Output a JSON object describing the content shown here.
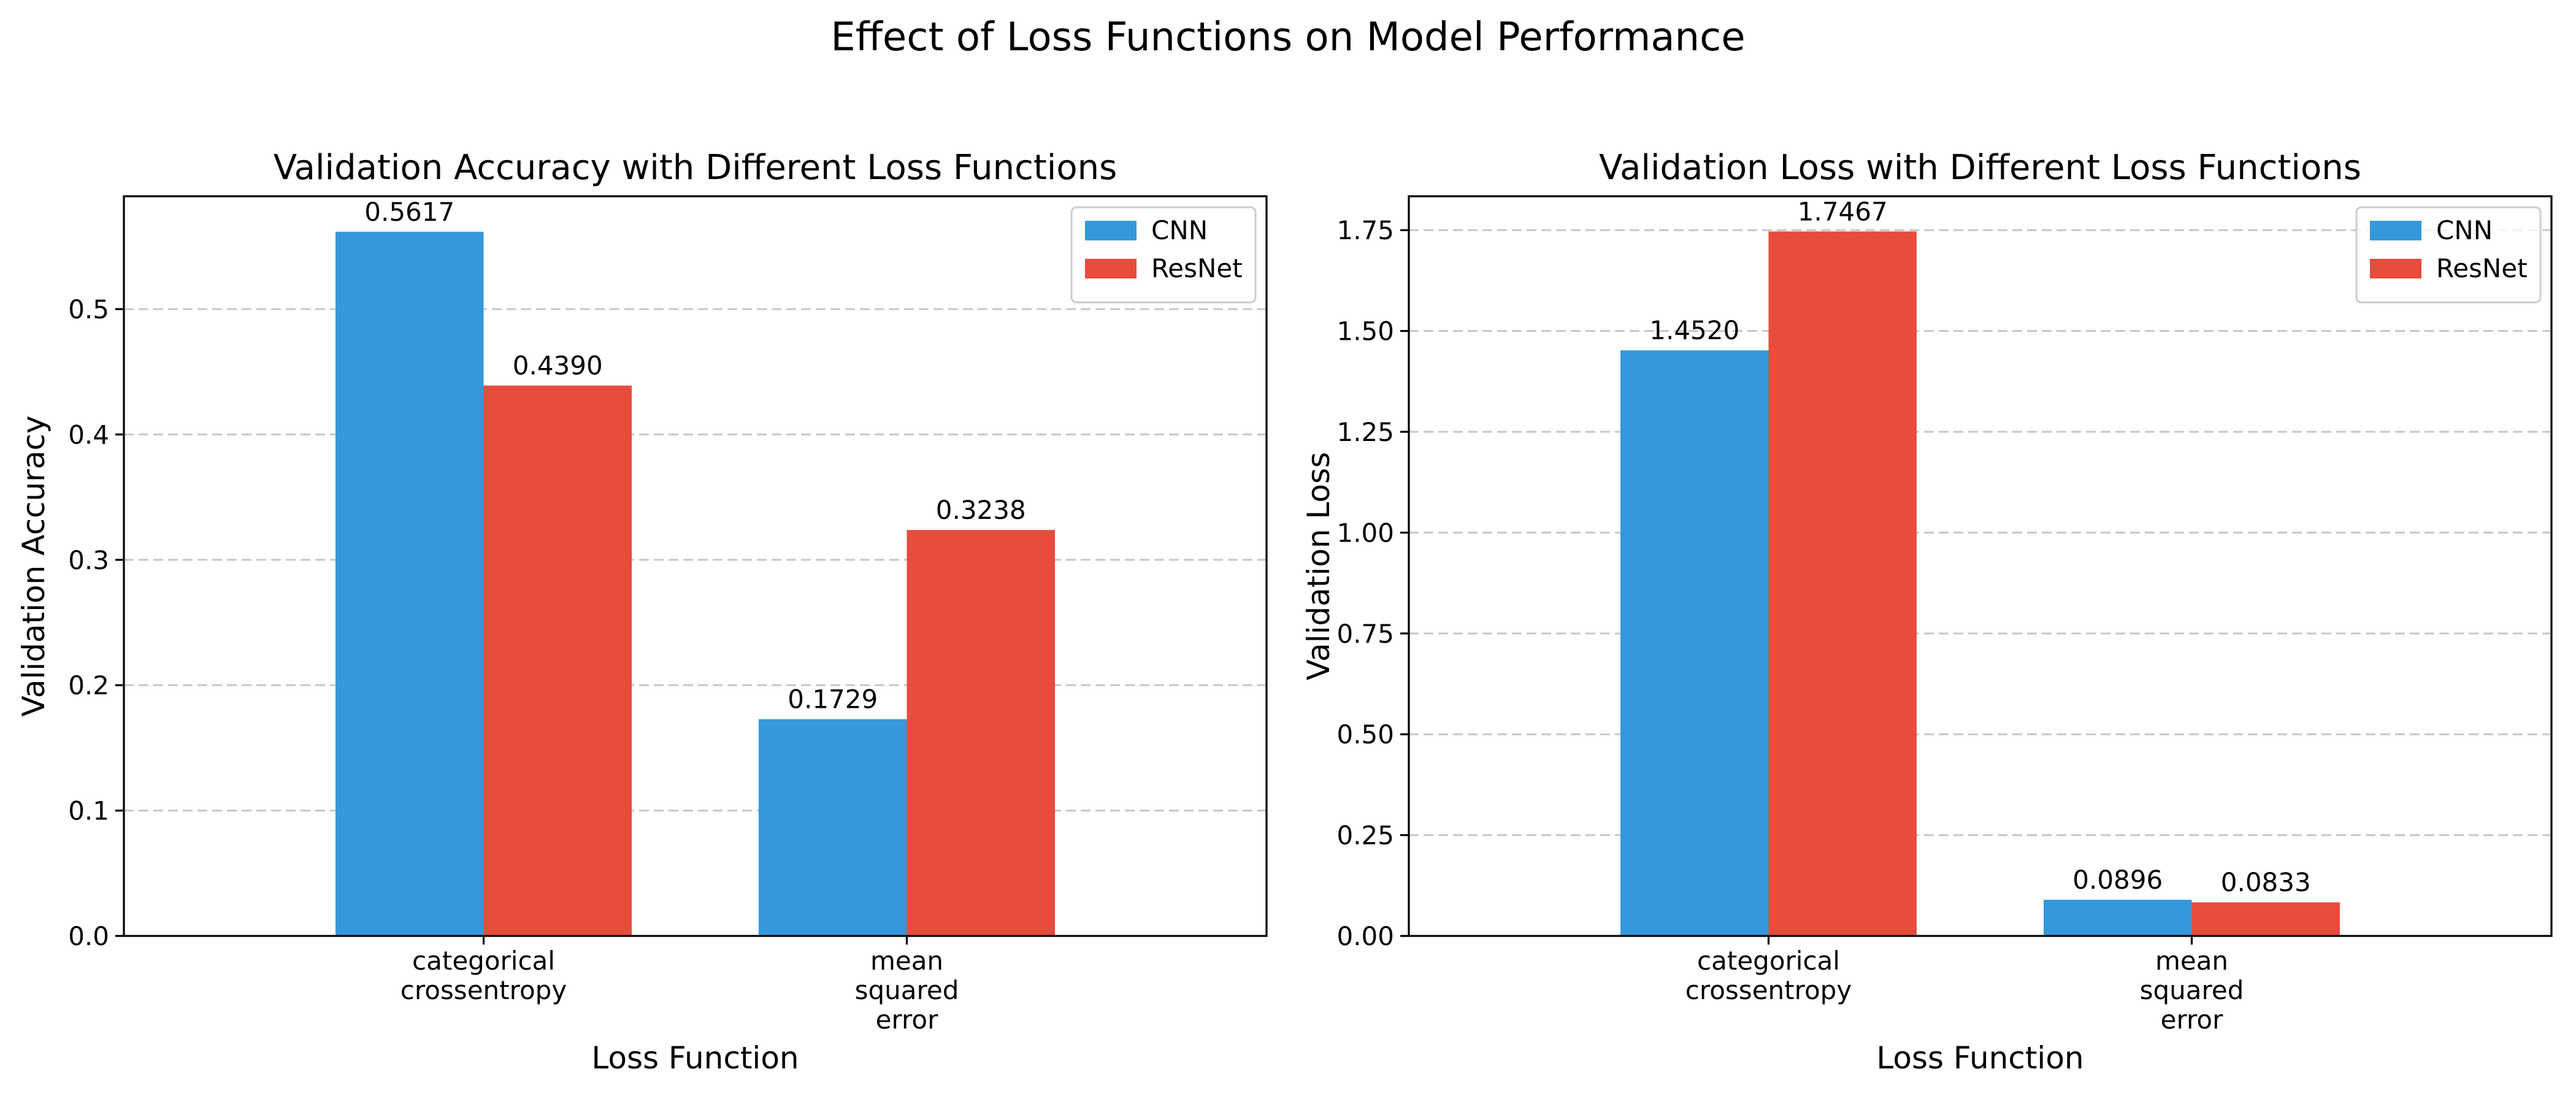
{
  "figure": {
    "suptitle": "Effect of Loss Functions on Model Performance"
  },
  "colors": {
    "CNN": "#3498db",
    "ResNet": "#e74c3c"
  },
  "chart_data": [
    {
      "type": "bar",
      "title": "Validation Accuracy with Different Loss Functions",
      "xlabel": "Loss Function",
      "ylabel": "Validation Accuracy",
      "categories": [
        [
          "categorical",
          "crossentropy"
        ],
        [
          "mean",
          "squared",
          "error"
        ]
      ],
      "series": [
        {
          "name": "CNN",
          "values": [
            0.5617,
            0.1729
          ]
        },
        {
          "name": "ResNet",
          "values": [
            0.439,
            0.3238
          ]
        }
      ],
      "value_labels": [
        [
          "0.5617",
          "0.1729"
        ],
        [
          "0.4390",
          "0.3238"
        ]
      ],
      "ylim": [
        0,
        0.59
      ],
      "yticks": [
        0.0,
        0.1,
        0.2,
        0.3,
        0.4,
        0.5
      ],
      "ytick_labels": [
        "0.0",
        "0.1",
        "0.2",
        "0.3",
        "0.4",
        "0.5"
      ],
      "grid": "y-dashed",
      "legend": "upper-right"
    },
    {
      "type": "bar",
      "title": "Validation Loss with Different Loss Functions",
      "xlabel": "Loss Function",
      "ylabel": "Validation Loss",
      "categories": [
        [
          "categorical",
          "crossentropy"
        ],
        [
          "mean",
          "squared",
          "error"
        ]
      ],
      "series": [
        {
          "name": "CNN",
          "values": [
            1.452,
            0.0896
          ]
        },
        {
          "name": "ResNet",
          "values": [
            1.7467,
            0.0833
          ]
        }
      ],
      "value_labels": [
        [
          "1.4520",
          "0.0896"
        ],
        [
          "1.7467",
          "0.0833"
        ]
      ],
      "ylim": [
        0,
        1.834
      ],
      "yticks": [
        0.0,
        0.25,
        0.5,
        0.75,
        1.0,
        1.25,
        1.5,
        1.75
      ],
      "ytick_labels": [
        "0.00",
        "0.25",
        "0.50",
        "0.75",
        "1.00",
        "1.25",
        "1.50",
        "1.75"
      ],
      "grid": "y-dashed",
      "legend": "upper-right"
    }
  ]
}
